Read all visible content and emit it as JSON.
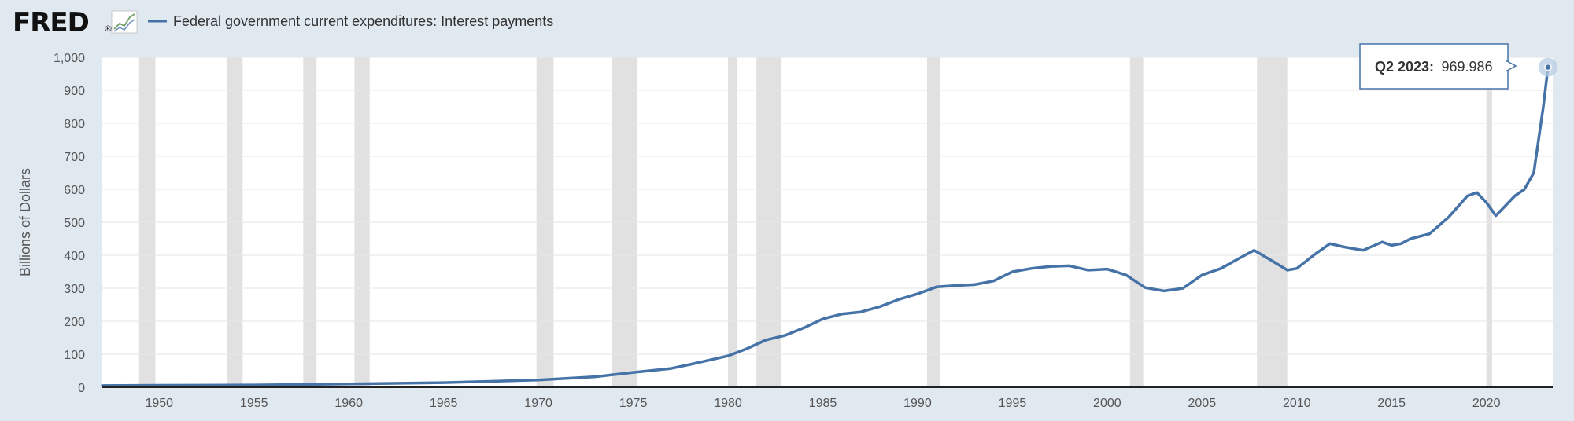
{
  "logo": {
    "text": "FRED",
    "reg_mark": "®",
    "icon": "line-chart-icon"
  },
  "legend": {
    "label": "Federal government current expenditures: Interest payments",
    "color": "#4572a7"
  },
  "tooltip": {
    "label": "Q2 2023:",
    "value": "969.986"
  },
  "colors": {
    "background": "#e1e9f0",
    "plot": "#ffffff",
    "recession": "#e1e1e1",
    "line": "#4572a7",
    "grid": "#e6e6e6",
    "axis": "#222222"
  },
  "chart_data": {
    "type": "line",
    "title": "",
    "ylabel": "Billions of Dollars",
    "xlabel": "",
    "xlim": [
      1947.0,
      2023.5
    ],
    "ylim": [
      0,
      1000
    ],
    "yticks": [
      0,
      100,
      200,
      300,
      400,
      500,
      600,
      700,
      800,
      900,
      1000
    ],
    "ytick_labels": [
      "0",
      "100",
      "200",
      "300",
      "400",
      "500",
      "600",
      "700",
      "800",
      "900",
      "1,000"
    ],
    "xticks": [
      1950,
      1955,
      1960,
      1965,
      1970,
      1975,
      1980,
      1985,
      1990,
      1995,
      2000,
      2005,
      2010,
      2015,
      2020
    ],
    "grid": true,
    "legend_position": "top-left",
    "recessions": [
      [
        1948.9,
        1949.8
      ],
      [
        1953.6,
        1954.4
      ],
      [
        1957.6,
        1958.3
      ],
      [
        1960.3,
        1961.1
      ],
      [
        1969.9,
        1970.8
      ],
      [
        1973.9,
        1975.2
      ],
      [
        1980.0,
        1980.5
      ],
      [
        1981.5,
        1982.8
      ],
      [
        1990.5,
        1991.2
      ],
      [
        2001.2,
        2001.9
      ],
      [
        2007.9,
        2009.5
      ],
      [
        2020.0,
        2020.3
      ]
    ],
    "series": [
      {
        "name": "Federal government current expenditures: Interest payments",
        "x": [
          1947.0,
          1950.0,
          1955.0,
          1960.0,
          1965.0,
          1970.0,
          1973.0,
          1975.0,
          1977.0,
          1978.0,
          1979.0,
          1980.0,
          1981.0,
          1982.0,
          1983.0,
          1984.0,
          1985.0,
          1986.0,
          1987.0,
          1988.0,
          1989.0,
          1990.0,
          1991.0,
          1992.0,
          1993.0,
          1994.0,
          1995.0,
          1996.0,
          1997.0,
          1998.0,
          1999.0,
          2000.0,
          2001.0,
          2002.0,
          2003.0,
          2004.0,
          2005.0,
          2006.0,
          2007.0,
          2007.75,
          2008.5,
          2009.5,
          2010.0,
          2011.0,
          2011.75,
          2012.5,
          2013.5,
          2014.5,
          2015.0,
          2015.5,
          2016.0,
          2017.0,
          2018.0,
          2019.0,
          2019.5,
          2020.0,
          2020.5,
          2021.0,
          2021.5,
          2022.0,
          2022.5,
          2023.0,
          2023.25
        ],
        "y": [
          5,
          6,
          7,
          10,
          14,
          22,
          32,
          45,
          57,
          69,
          82,
          95,
          117,
          143,
          157,
          180,
          207,
          222,
          228,
          244,
          266,
          283,
          304,
          308,
          311,
          322,
          350,
          360,
          366,
          368,
          355,
          358,
          340,
          302,
          292,
          300,
          340,
          360,
          392,
          415,
          390,
          355,
          360,
          405,
          435,
          425,
          415,
          440,
          430,
          435,
          450,
          465,
          515,
          580,
          590,
          560,
          520,
          550,
          580,
          600,
          650,
          850,
          970
        ]
      }
    ],
    "annotations": [
      {
        "x": 2023.25,
        "label": "Q2 2023:",
        "value": 969.986
      }
    ]
  }
}
